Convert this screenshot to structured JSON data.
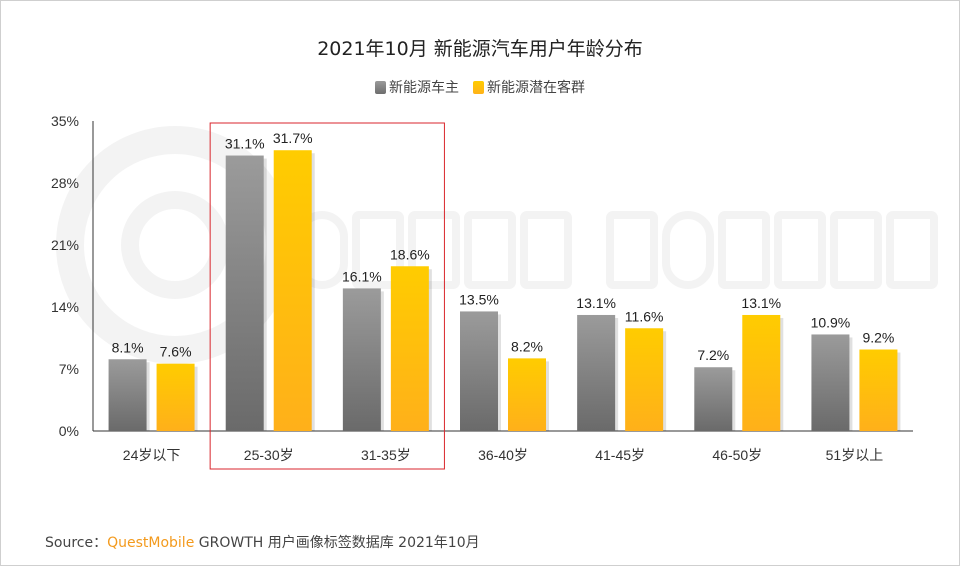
{
  "chart_data": {
    "type": "bar",
    "title": "2021年10月 新能源汽车用户年龄分布",
    "categories": [
      "24岁以下",
      "25-30岁",
      "31-35岁",
      "36-40岁",
      "41-45岁",
      "46-50岁",
      "51岁以上"
    ],
    "series": [
      {
        "name": "新能源车主",
        "values": [
          8.1,
          31.1,
          16.1,
          13.5,
          13.1,
          7.2,
          10.9
        ],
        "labels": [
          "8.1%",
          "31.1%",
          "16.1%",
          "13.5%",
          "13.1%",
          "7.2%",
          "10.9%"
        ],
        "color": "#8c8c8c"
      },
      {
        "name": "新能源潜在客群",
        "values": [
          7.6,
          31.7,
          18.6,
          8.2,
          11.6,
          13.1,
          9.2
        ],
        "labels": [
          "7.6%",
          "31.7%",
          "18.6%",
          "8.2%",
          "11.6%",
          "13.1%",
          "9.2%"
        ],
        "color": "#ffc000"
      }
    ],
    "yticks": [
      "0%",
      "7%",
      "14%",
      "21%",
      "28%",
      "35%"
    ],
    "ylim": [
      0,
      35
    ],
    "grid": false,
    "legend": "top-center",
    "highlight": [
      "25-30岁",
      "31-35岁"
    ],
    "highlight_color": "#d9262c"
  },
  "source": {
    "prefix": "Source：",
    "brand": "QuestMobile",
    "text": "GROWTH 用户画像标签数据库 2021年10月"
  },
  "watermark": "QUEST MOBILE"
}
